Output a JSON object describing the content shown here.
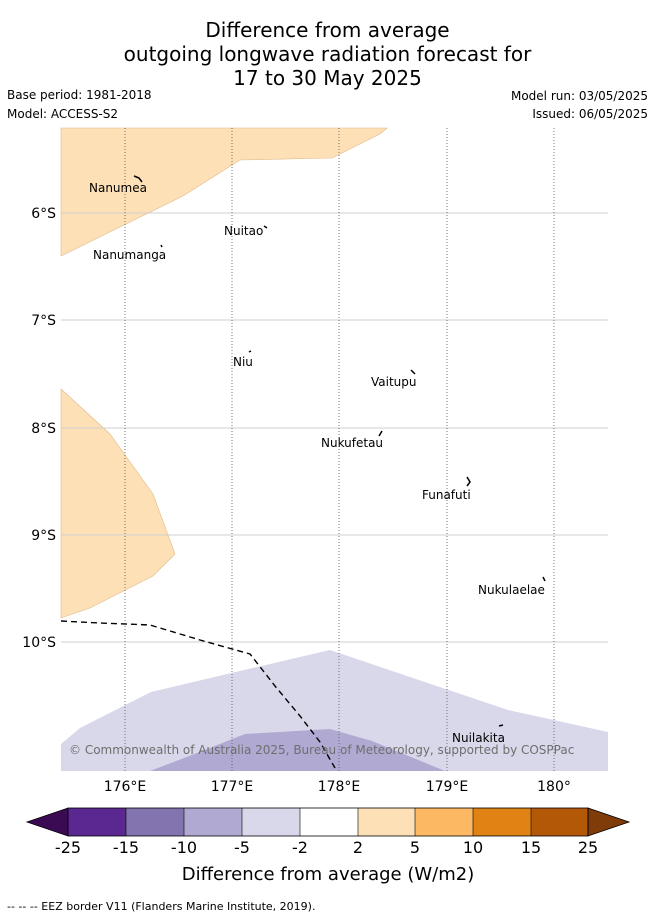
{
  "title": {
    "line1": "Difference from average",
    "line2": "outgoing longwave radiation forecast for",
    "line3": "17 to 30 May 2025"
  },
  "meta": {
    "base_period": "Base period: 1981-2018",
    "model": "Model: ACCESS-S2",
    "model_run": "Model run: 03/05/2025",
    "issued": "Issued: 06/05/2025"
  },
  "map": {
    "lon_ticks": [
      "176°E",
      "177°E",
      "178°E",
      "179°E",
      "180°"
    ],
    "lat_ticks": [
      "6°S",
      "7°S",
      "8°S",
      "9°S",
      "10°S"
    ],
    "places": [
      {
        "name": "Nanumea"
      },
      {
        "name": "Nuitao"
      },
      {
        "name": "Nanumanga"
      },
      {
        "name": "Niu"
      },
      {
        "name": "Vaitupu"
      },
      {
        "name": "Nukufetau"
      },
      {
        "name": "Funafuti"
      },
      {
        "name": "Nukulaelae"
      },
      {
        "name": "Nuilakita"
      }
    ],
    "copyright": "© Commonwealth of Australia 2025, Bureau of Meteorology, supported by COSPPac"
  },
  "colorbar": {
    "label": "Difference from average (W/m2)",
    "ticks": [
      "-25",
      "-15",
      "-10",
      "-5",
      "-2",
      "2",
      "5",
      "10",
      "15",
      "25"
    ],
    "colors": {
      "under": "#3a0a52",
      "c1": "#5b2790",
      "c2": "#8374b0",
      "c3": "#b0a9d2",
      "c4": "#d8d8ea",
      "c5": "#ffffff",
      "c6": "#fee0b6",
      "c7": "#fdb863",
      "c8": "#e08214",
      "c9": "#b35806",
      "over": "#7f3b08"
    }
  },
  "footnote": "-- -- -- EEZ border V11 (Flanders Marine Institute, 2019)."
}
